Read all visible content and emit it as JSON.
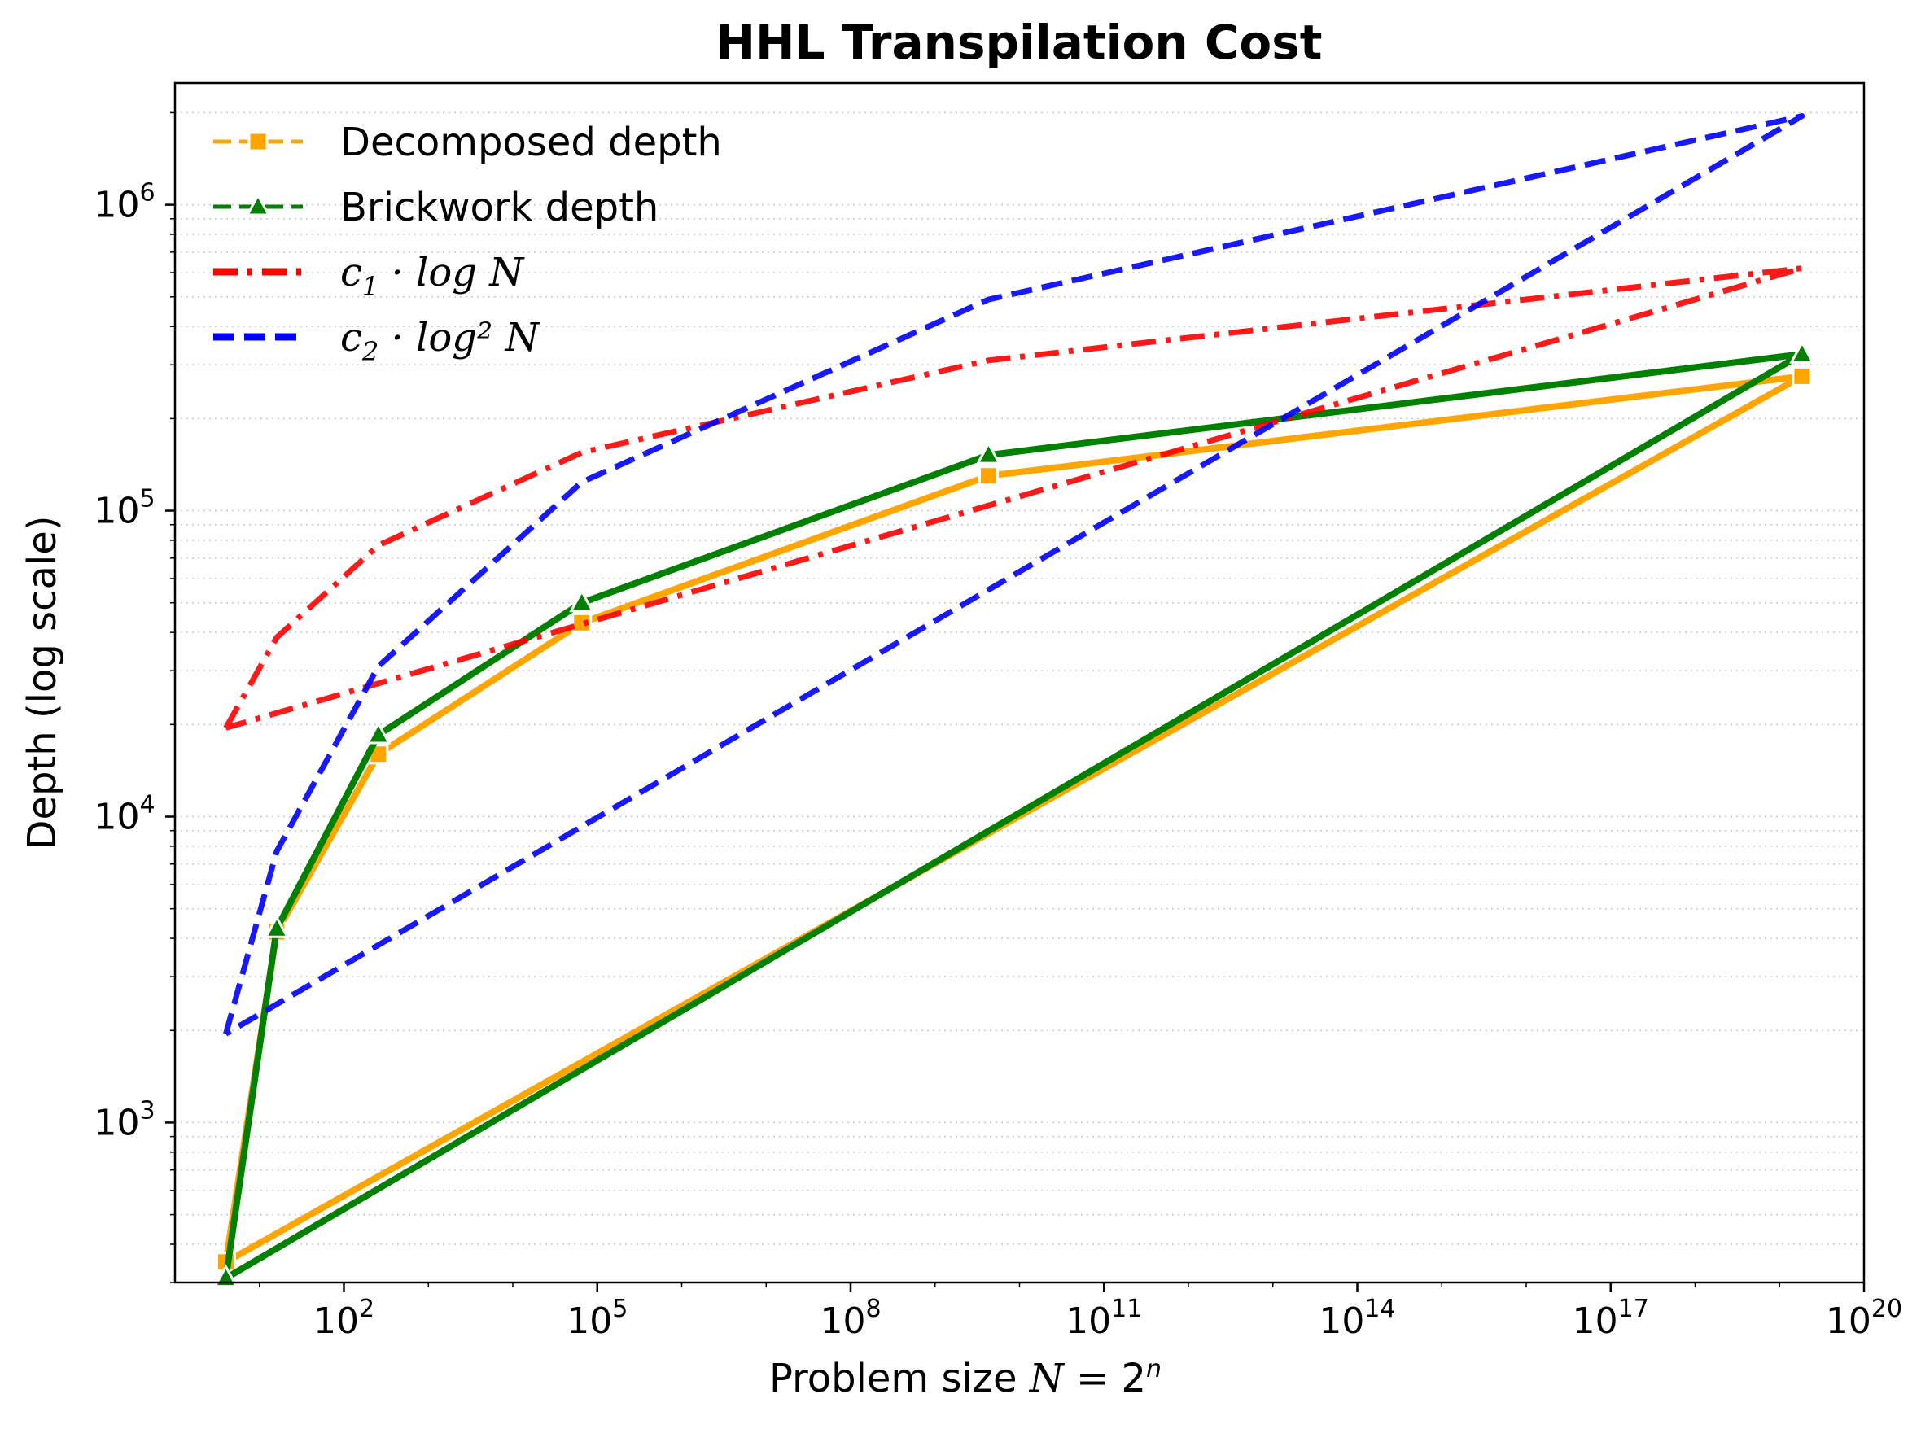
{
  "chart_data": {
    "type": "line",
    "title": "HHL Transpilation Cost",
    "xlabel": "Problem size N = 2^n",
    "ylabel": "Depth (log scale)",
    "xscale": "log",
    "yscale": "log",
    "xlim": [
      1,
      1e+20
    ],
    "ylim": [
      300,
      2500000
    ],
    "xticks": [
      {
        "base": "10",
        "exp": "2",
        "value": 100.0
      },
      {
        "base": "10",
        "exp": "5",
        "value": 100000.0
      },
      {
        "base": "10",
        "exp": "8",
        "value": 100000000.0
      },
      {
        "base": "10",
        "exp": "11",
        "value": 100000000000.0
      },
      {
        "base": "10",
        "exp": "14",
        "value": 100000000000000.0
      },
      {
        "base": "10",
        "exp": "17",
        "value": 1e+17
      },
      {
        "base": "10",
        "exp": "20",
        "value": 1e+20
      }
    ],
    "yticks": [
      {
        "base": "10",
        "exp": "3",
        "value": 1000.0
      },
      {
        "base": "10",
        "exp": "4",
        "value": 10000.0
      },
      {
        "base": "10",
        "exp": "5",
        "value": 100000.0
      },
      {
        "base": "10",
        "exp": "6",
        "value": 1000000.0
      }
    ],
    "grid": "y-minor-dotted",
    "legend_position": "top-left",
    "series": [
      {
        "name": "Decomposed depth",
        "color": "#FFA500",
        "style": "solid",
        "marker": "square",
        "x": [
          4,
          16,
          256,
          65536,
          4294967296,
          18446744073709551616,
          4
        ],
        "y": [
          350,
          4200,
          16000,
          43000,
          130000,
          275000,
          350
        ]
      },
      {
        "name": "Brickwork depth",
        "color": "#008000",
        "style": "solid",
        "marker": "triangle",
        "x": [
          4,
          16,
          256,
          65536,
          4294967296,
          18446744073709551616,
          4
        ],
        "y": [
          310,
          4300,
          18500,
          50000,
          152000,
          325000,
          310
        ]
      },
      {
        "name_prefix": "c",
        "name_sub": "1",
        "name_suffix": "· log N",
        "color": "#FF0000",
        "style": "dashdot",
        "marker": "none",
        "x": [
          4,
          16,
          256,
          65536,
          4294967296,
          18446744073709551616,
          4
        ],
        "y": [
          19500,
          38500,
          77000,
          155000,
          310000,
          620000,
          19500
        ]
      },
      {
        "name_prefix": "c",
        "name_sub": "2",
        "name_suffix": "· log² N",
        "color": "#0000FF",
        "style": "dashed",
        "marker": "none",
        "x": [
          4,
          16,
          256,
          65536,
          4294967296,
          18446744073709551616,
          4
        ],
        "y": [
          1950,
          7700,
          31000,
          124000,
          490000,
          1950000,
          1950
        ]
      }
    ]
  }
}
